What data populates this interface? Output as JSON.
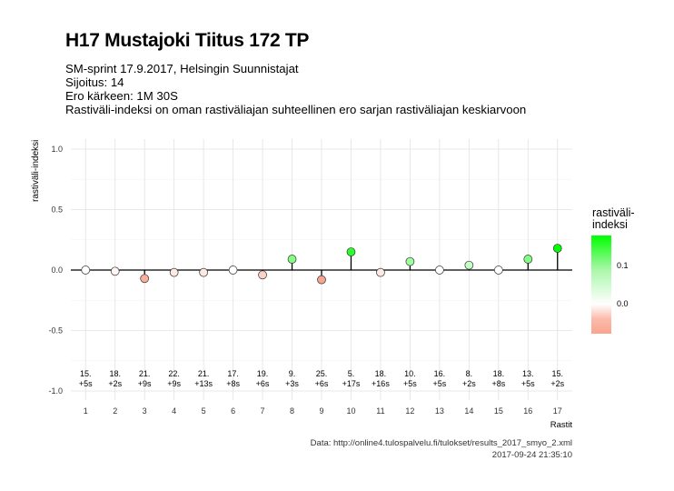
{
  "header": {
    "title": "H17 Mustajoki Tiitus 172 TP",
    "subtitle_lines": [
      "SM-sprint 17.9.2017, Helsingin Suunnistajat",
      "Sijoitus: 14",
      "Ero kärkeen: 1M 30S",
      "Rastiväli-indeksi on oman rastiväliajan suhteellinen ero sarjan rastiväliajan keskiarvoon"
    ]
  },
  "caption": {
    "line1": "Data: http://online4.tulospalvelu.fi/tulokset/results_2017_smyo_2.xml",
    "line2": "2017-09-24 21:35:10"
  },
  "legend": {
    "title": "rastiväli-\nindeksi",
    "tick_high": "0.1",
    "tick_zero": "0.0"
  },
  "chart_data": {
    "type": "scatter",
    "xlabel": "Rastit",
    "ylabel": "rastiväli-indeksi",
    "ylim": [
      -1.0,
      1.0
    ],
    "xlim": [
      0.5,
      17.5
    ],
    "yticks": [
      "1.0",
      "0.5",
      "0.0",
      "-0.5",
      "-1.0"
    ],
    "ytick_values": [
      1.0,
      0.5,
      0.0,
      -0.5,
      -1.0
    ],
    "x": [
      1,
      2,
      3,
      4,
      5,
      6,
      7,
      8,
      9,
      10,
      11,
      12,
      13,
      14,
      15,
      16,
      17
    ],
    "values": [
      0.0,
      -0.01,
      -0.07,
      -0.02,
      -0.02,
      0.0,
      -0.04,
      0.09,
      -0.08,
      0.15,
      -0.02,
      0.07,
      0.0,
      0.04,
      0.0,
      0.09,
      0.18
    ],
    "labels_rank": [
      "15.",
      "18.",
      "21.",
      "22.",
      "21.",
      "17.",
      "19.",
      "9.",
      "25.",
      "5.",
      "18.",
      "10.",
      "16.",
      "8.",
      "18.",
      "13.",
      "15."
    ],
    "labels_diff": [
      "+5s",
      "+2s",
      "+9s",
      "+9s",
      "+13s",
      "+8s",
      "+6s",
      "+3s",
      "+6s",
      "+17s",
      "+16s",
      "+5s",
      "+5s",
      "+2s",
      "+8s",
      "+5s",
      "+2s"
    ],
    "grid": true,
    "legend_position": "right",
    "colors": {
      "max_positive": "#00ff00",
      "zero": "#ffffff",
      "negative": "#f9a48f",
      "grid": "#e2e2e2",
      "baseline": "#000000"
    }
  }
}
